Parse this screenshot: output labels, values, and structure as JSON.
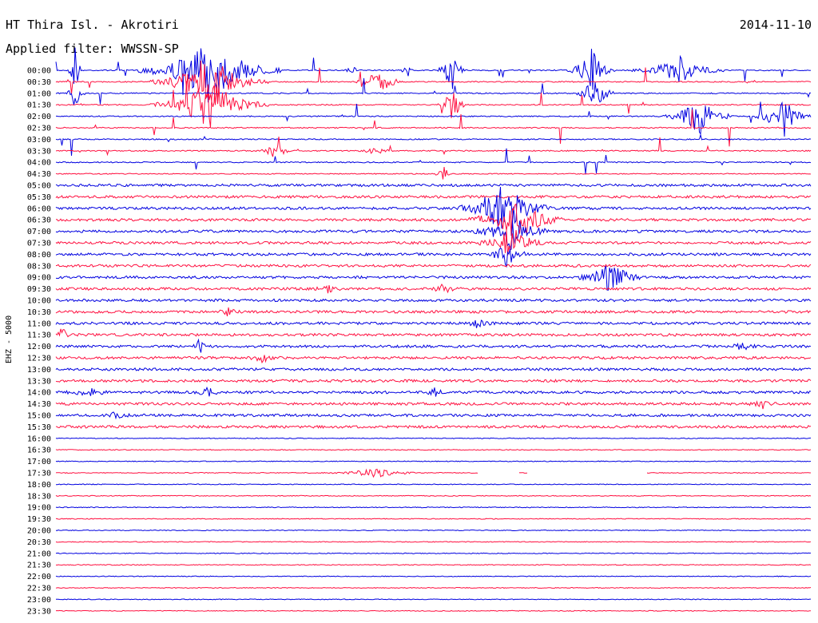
{
  "header": {
    "station": "HT Thira Isl. - Akrotiri",
    "filter": "Applied filter: WWSSN-SP",
    "date": "2014-11-10"
  },
  "chart_data": {
    "type": "line",
    "title": "HT Thira Isl. - Akrotiri",
    "ylabel": "EHZ - 5000",
    "rows": [
      "00:00",
      "00:30",
      "01:00",
      "01:30",
      "02:00",
      "02:30",
      "03:00",
      "03:30",
      "04:00",
      "04:30",
      "05:00",
      "05:30",
      "06:00",
      "06:30",
      "07:00",
      "07:30",
      "08:00",
      "08:30",
      "09:00",
      "09:30",
      "10:00",
      "10:30",
      "11:00",
      "11:30",
      "12:00",
      "12:30",
      "13:00",
      "13:30",
      "14:00",
      "14:30",
      "15:00",
      "15:30",
      "16:00",
      "16:30",
      "17:00",
      "17:30",
      "18:00",
      "18:30",
      "19:00",
      "19:30",
      "20:00",
      "20:30",
      "21:00",
      "21:30",
      "22:00",
      "22:30",
      "23:00",
      "23:30"
    ],
    "colors": {
      "even": "#0000e0",
      "odd": "#ff1040"
    },
    "grid": false,
    "legend": "none"
  }
}
